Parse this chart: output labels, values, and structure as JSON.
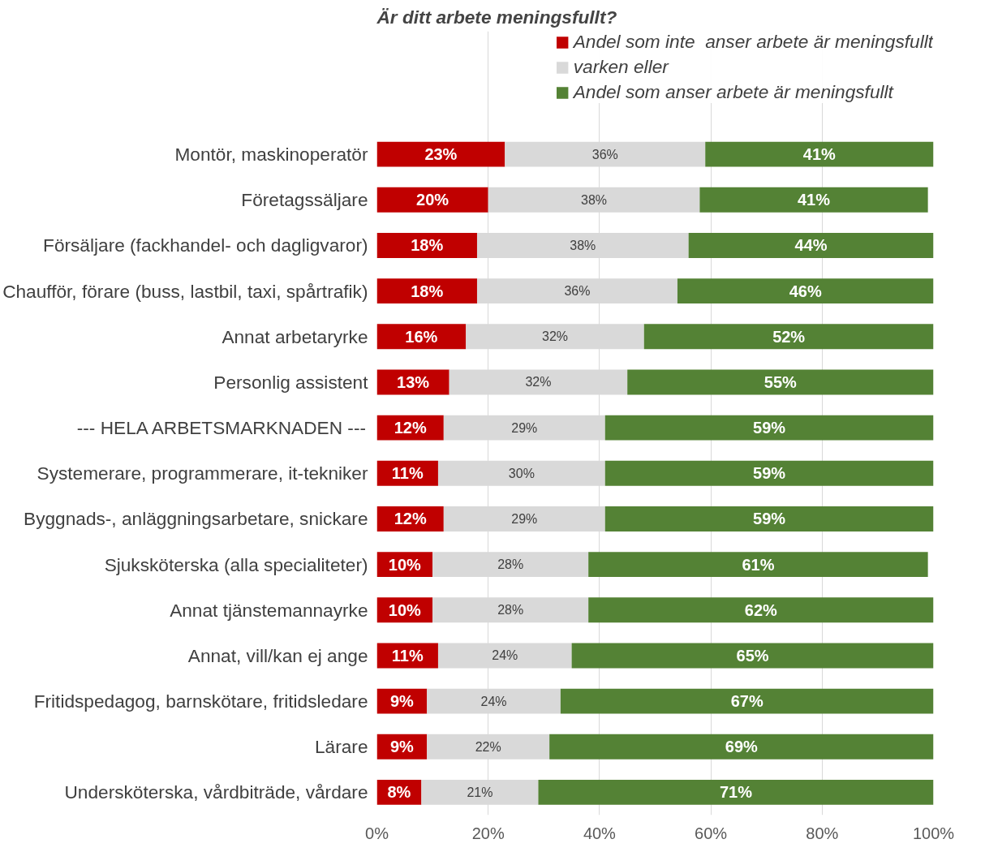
{
  "chart_data": {
    "type": "bar",
    "orientation": "horizontal",
    "stacked": true,
    "title": "Är ditt arbete meningsfullt?",
    "categories": [
      "Montör, maskinoperatör",
      "Företagssäljare",
      "Försäljare (fackhandel- och dagligvaror)",
      "Chaufför, förare (buss, lastbil, taxi, spårtrafik)",
      "Annat arbetaryrke",
      "Personlig assistent",
      "--- HELA ARBETSMARKNADEN ---",
      "Systemerare, programmerare, it-tekniker",
      "Byggnads-, anläggningsarbetare, snickare",
      "Sjuksköterska (alla specialiteter)",
      "Annat tjänstemannayrke",
      "Annat, vill/kan ej ange",
      "Fritidspedagog, barnskötare, fritidsledare",
      "Lärare",
      "Undersköterska, vårdbiträde, vårdare"
    ],
    "series": [
      {
        "name": "Andel som inte  anser arbete är meningsfullt",
        "color": "#c00000",
        "values": [
          23,
          20,
          18,
          18,
          16,
          13,
          12,
          11,
          12,
          10,
          10,
          11,
          9,
          9,
          8
        ],
        "value_labels": [
          "23%",
          "20%",
          "18%",
          "18%",
          "16%",
          "13%",
          "12%",
          "11%",
          "12%",
          "10%",
          "10%",
          "11%",
          "9%",
          "9%",
          "8%"
        ]
      },
      {
        "name": "varken eller",
        "color": "#d9d9d9",
        "values": [
          36,
          38,
          38,
          36,
          32,
          32,
          29,
          30,
          29,
          28,
          28,
          24,
          24,
          22,
          21
        ],
        "value_labels": [
          "36%",
          "38%",
          "38%",
          "36%",
          "32%",
          "32%",
          "29%",
          "30%",
          "29%",
          "28%",
          "28%",
          "24%",
          "24%",
          "22%",
          "21%"
        ]
      },
      {
        "name": "Andel som anser arbete är meningsfullt",
        "color": "#548235",
        "values": [
          41,
          41,
          44,
          46,
          52,
          55,
          59,
          59,
          59,
          61,
          62,
          65,
          67,
          69,
          71
        ],
        "value_labels": [
          "41%",
          "41%",
          "44%",
          "46%",
          "52%",
          "55%",
          "59%",
          "59%",
          "59%",
          "61%",
          "62%",
          "65%",
          "67%",
          "69%",
          "71%"
        ]
      }
    ],
    "xlim": [
      0,
      100
    ],
    "xticks": [
      {
        "value": 0,
        "label": "0%"
      },
      {
        "value": 20,
        "label": "20%"
      },
      {
        "value": 40,
        "label": "40%"
      },
      {
        "value": 60,
        "label": "60%"
      },
      {
        "value": 80,
        "label": "80%"
      },
      {
        "value": 100,
        "label": "100%"
      }
    ],
    "grid": "x",
    "legend": "top right"
  }
}
